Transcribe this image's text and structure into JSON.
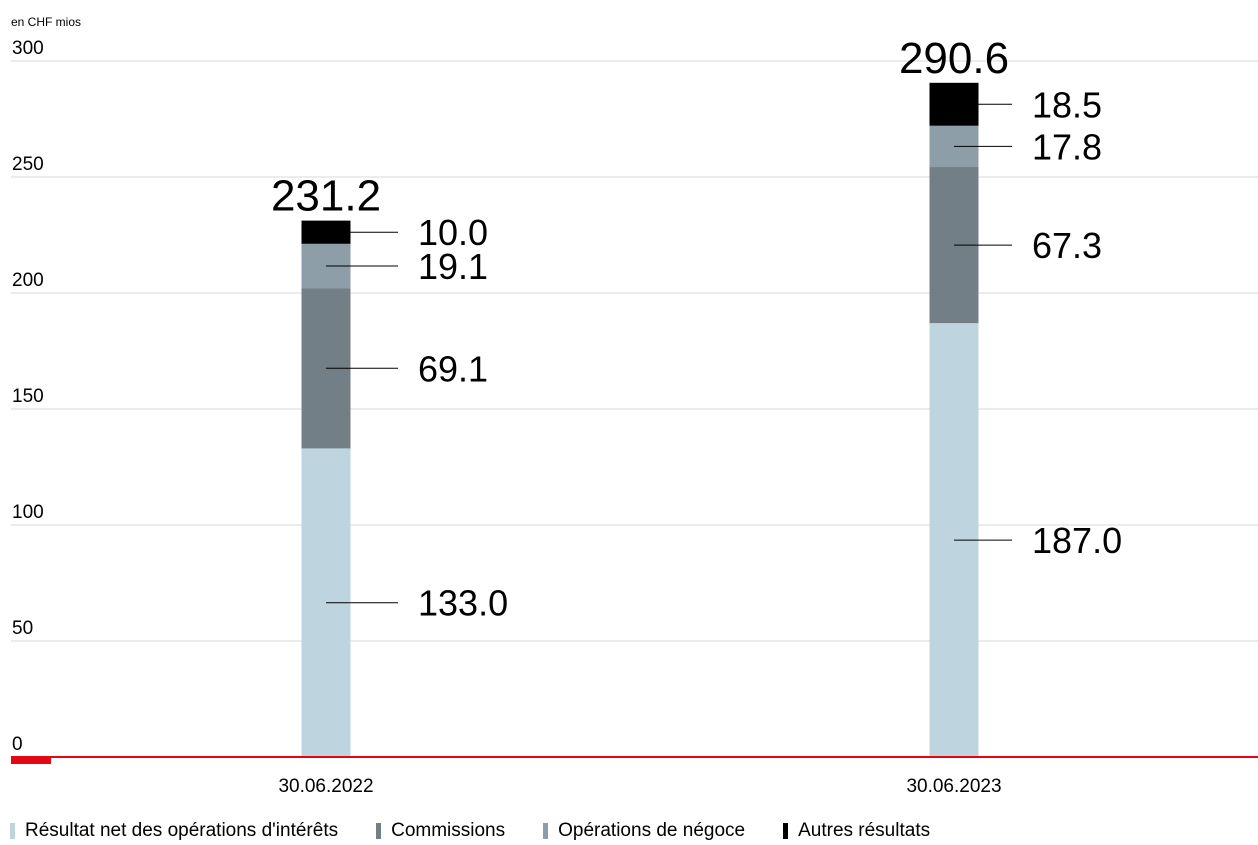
{
  "chart_data": {
    "type": "bar",
    "stacked": true,
    "unit_label": "en CHF mios",
    "categories": [
      "30.06.2022",
      "30.06.2023"
    ],
    "ylim": [
      0,
      300
    ],
    "yticks": [
      "0",
      "50",
      "100",
      "150",
      "200",
      "250",
      "300"
    ],
    "grid": true,
    "legend_position": "bottom-left",
    "series": [
      {
        "name": "Résultat net des opérations d'intérêts",
        "color": "#bed5e0",
        "values": [
          133.0,
          187.0
        ],
        "labels": [
          "133.0",
          "187.0"
        ]
      },
      {
        "name": "Commissions",
        "color": "#737f87",
        "values": [
          69.1,
          67.3
        ],
        "labels": [
          "69.1",
          "67.3"
        ]
      },
      {
        "name": "Opérations de négoce",
        "color": "#8e9ea8",
        "values": [
          19.1,
          17.8
        ],
        "labels": [
          "19.1",
          "17.8"
        ]
      },
      {
        "name": "Autres résultats",
        "color": "#000000",
        "values": [
          10.0,
          18.5
        ],
        "labels": [
          "10.0",
          "18.5"
        ]
      }
    ],
    "totals": [
      "231.2",
      "290.6"
    ],
    "axis_color": "#e30613"
  }
}
